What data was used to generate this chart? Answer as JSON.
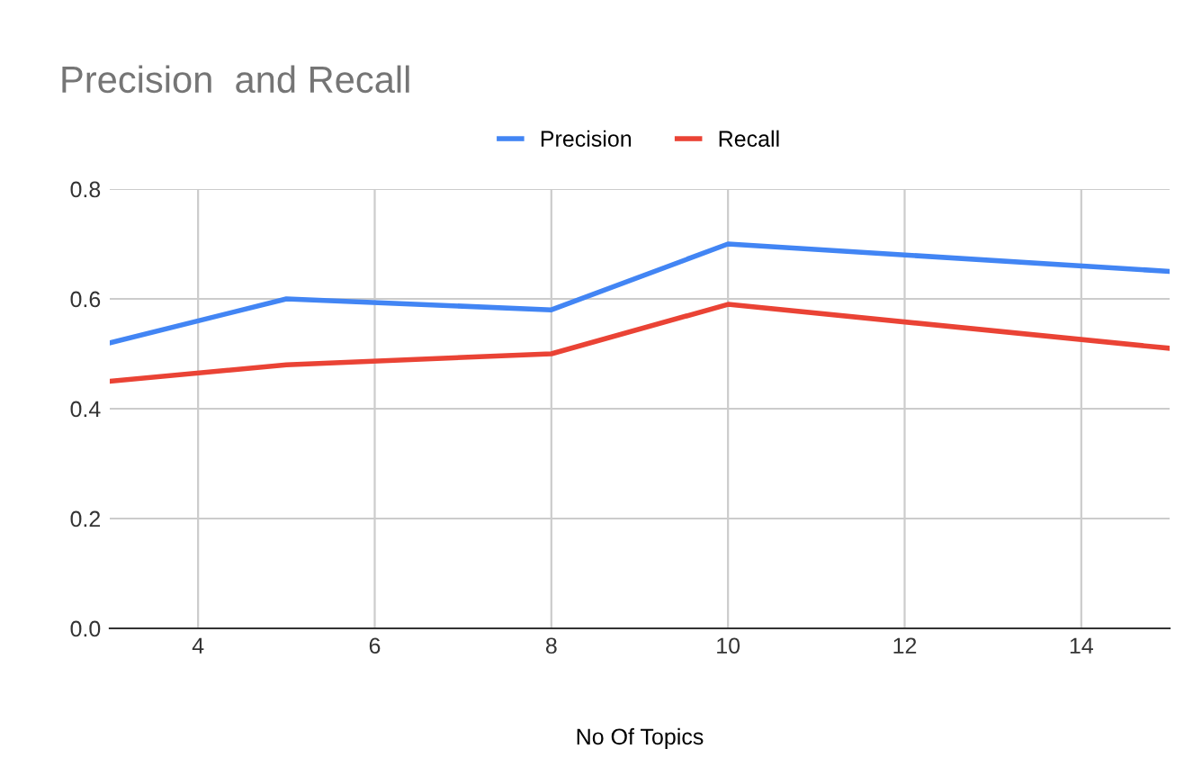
{
  "chart_data": {
    "type": "line",
    "title": "Precision  and Recall",
    "xlabel": "No Of Topics",
    "x": [
      3,
      5,
      8,
      10,
      15
    ],
    "series": [
      {
        "name": "Precision",
        "color": "#4285f4",
        "values": [
          0.52,
          0.6,
          0.58,
          0.7,
          0.65
        ]
      },
      {
        "name": "Recall",
        "color": "#ea4335",
        "values": [
          0.45,
          0.48,
          0.5,
          0.59,
          0.51
        ]
      }
    ],
    "xlim": [
      3,
      15
    ],
    "xticks": [
      4,
      6,
      8,
      10,
      12,
      14
    ],
    "ylim": [
      0,
      0.8
    ],
    "yticks": [
      {
        "value": 0,
        "label": "0.0"
      },
      {
        "value": 0.2,
        "label": "0.2"
      },
      {
        "value": 0.4,
        "label": "0.4"
      },
      {
        "value": 0.6,
        "label": "0.6"
      },
      {
        "value": 0.8,
        "label": "0.8"
      }
    ],
    "grid": true,
    "legend": "top",
    "marker": "none",
    "line_style": "solid"
  }
}
